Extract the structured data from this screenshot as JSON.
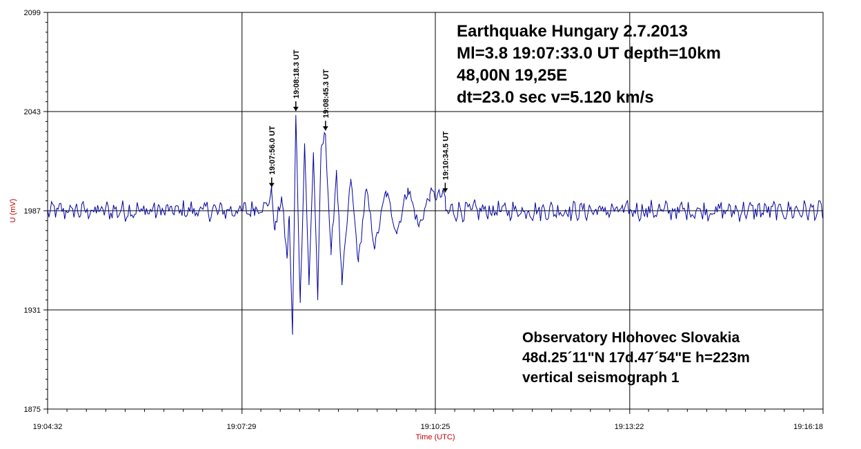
{
  "chart_data": {
    "type": "line",
    "title": "Earthquake  Hungary  2.7.2013",
    "xlabel": "Time (UTC)",
    "ylabel": "U (mV)",
    "ylim": [
      1875,
      2099
    ],
    "y_ticks": [
      "2099",
      "2043",
      "1987",
      "1931",
      "1875"
    ],
    "x_ticks": [
      "19:04:32",
      "19:07:29",
      "19:10:25",
      "19:13:22",
      "19:16:18"
    ],
    "x_range": [
      "19:04:32",
      "19:16:18"
    ],
    "grid": true,
    "baseline": 1987,
    "series": [
      {
        "color": "#0000a0",
        "x": [
          "19:04:32",
          "19:07:40",
          "19:07:52",
          "19:07:56",
          "19:07:59",
          "19:08:05",
          "19:08:10",
          "19:08:12",
          "19:08:15",
          "19:08:18",
          "19:08:22",
          "19:08:26",
          "19:08:30",
          "19:08:34",
          "19:08:38",
          "19:08:41",
          "19:08:45",
          "19:08:50",
          "19:08:55",
          "19:09:00",
          "19:09:08",
          "19:09:15",
          "19:09:22",
          "19:09:30",
          "19:09:40",
          "19:09:50",
          "19:10:00",
          "19:10:10",
          "19:10:20",
          "19:10:34",
          "19:10:45",
          "19:11:00",
          "19:12:00",
          "19:13:00",
          "19:14:00",
          "19:15:00",
          "19:16:00",
          "19:16:18"
        ],
        "values": [
          1987,
          1988,
          1990,
          1998,
          1976,
          1995,
          1960,
          1984,
          1917,
          2041,
          1935,
          2025,
          1945,
          2020,
          1938,
          2022,
          2030,
          1962,
          2010,
          1945,
          2005,
          1958,
          1999,
          1966,
          1998,
          1975,
          2000,
          1978,
          1996,
          1995,
          1991,
          1989,
          1990,
          1987,
          1988,
          1990,
          1987,
          1984
        ]
      }
    ],
    "annotations": [
      {
        "label": "19:07:56.0 UT",
        "x": "19:07:56",
        "y": 1998
      },
      {
        "label": "19:08:18.3 UT",
        "x": "19:08:18",
        "y": 2041
      },
      {
        "label": "19:08:45.3 UT",
        "x": "19:08:45",
        "y": 2030
      },
      {
        "label": "19:10:34.5 UT",
        "x": "19:10:34",
        "y": 1995
      }
    ]
  },
  "info": {
    "line1": "Earthquake  Hungary  2.7.2013",
    "line2": "Ml=3.8       19:07:33.0 UT  depth=10km",
    "line3": "48,00N    19,25E",
    "line4": "dt=23.0 sec        v=5.120 km/s"
  },
  "observatory": {
    "line1": "Observatory    Hlohovec    Slovakia",
    "line2": "48d.25´11\"N    17d.47´54\"E    h=223m",
    "line3": "vertical seismograph 1"
  }
}
